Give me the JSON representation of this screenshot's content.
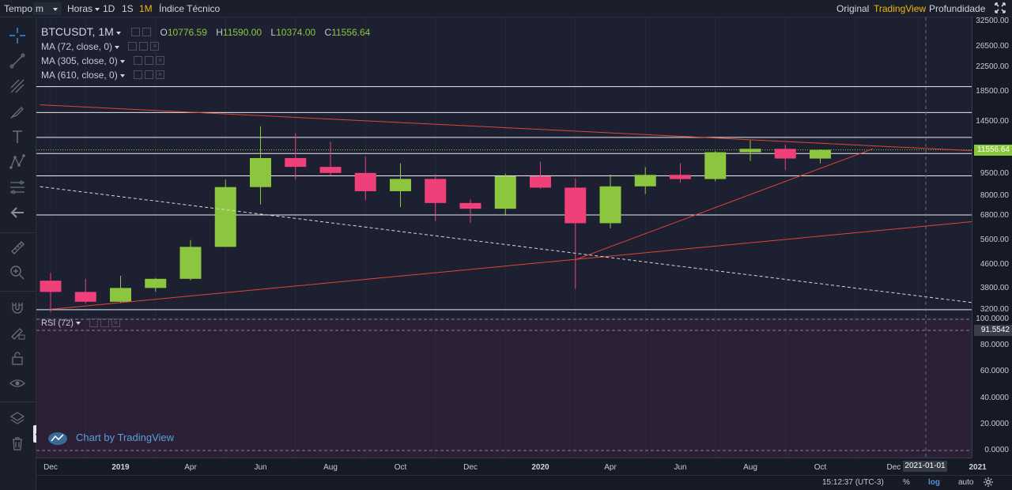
{
  "toolbar": {
    "interval_label": "Tempo",
    "minutes_label": "m",
    "hours_label": "Horas",
    "tf_1d": "1D",
    "tf_1s": "1S",
    "tf_1m": "1M",
    "indicators_label": "Índice Técnico",
    "view_original": "Original",
    "view_tradingview": "TradingView",
    "view_depth": "Profundidade"
  },
  "legend": {
    "symbol": "BTCUSDT, 1M",
    "o_key": "O",
    "o_val": "10776.59",
    "h_key": "H",
    "h_val": "11590.00",
    "l_key": "L",
    "l_val": "10374.00",
    "c_key": "C",
    "c_val": "11556.64",
    "ma1": "MA (72, close, 0)",
    "ma2": "MA (305, close, 0)",
    "ma3": "MA (610, close, 0)"
  },
  "rsi": {
    "label": "RSI (72)",
    "value": "91.5542",
    "ticks": [
      "100.0000",
      "80.0000",
      "60.0000",
      "40.0000",
      "20.0000",
      "0.0000"
    ]
  },
  "price_axis": {
    "labels": [
      "32500.00",
      "26500.00",
      "22500.00",
      "18500.00",
      "14500.00",
      "9500.00",
      "8000.00",
      "6800.00",
      "5600.00",
      "4600.00",
      "3800.00",
      "3200.00"
    ],
    "last_price": "11556.64"
  },
  "time_axis": {
    "labels": [
      "Dec",
      "2019",
      "Apr",
      "Jun",
      "Aug",
      "Oct",
      "Dec",
      "2020",
      "Apr",
      "Jun",
      "Aug",
      "Oct",
      "Dec",
      "2021"
    ],
    "crosshair_date": "2021-01-01"
  },
  "bottom": {
    "clock": "15:12:37 (UTC-3)",
    "percent": "%",
    "log": "log",
    "auto": "auto"
  },
  "watermark": "Chart by TradingView",
  "colors": {
    "up": "#8cc63f",
    "down": "#f0407a",
    "trend": "#e0453a",
    "level": "#e8e8e8",
    "accent": "#f0b90b"
  },
  "chart_data": {
    "type": "candlestick",
    "symbol": "BTCUSDT",
    "timeframe": "1M",
    "scale": "log",
    "ylim": [
      3000,
      33500
    ],
    "categories": [
      "2018-12",
      "2019-01",
      "2019-02",
      "2019-03",
      "2019-04",
      "2019-05",
      "2019-06",
      "2019-07",
      "2019-08",
      "2019-09",
      "2019-10",
      "2019-11",
      "2019-12",
      "2020-01",
      "2020-02",
      "2020-03",
      "2020-04",
      "2020-05",
      "2020-06",
      "2020-07",
      "2020-08",
      "2020-09",
      "2020-10"
    ],
    "candles": [
      {
        "t": "2018-12",
        "o": 4040,
        "h": 4300,
        "l": 3140,
        "c": 3690
      },
      {
        "t": "2019-01",
        "o": 3690,
        "h": 4100,
        "l": 3360,
        "c": 3410
      },
      {
        "t": "2019-02",
        "o": 3410,
        "h": 4200,
        "l": 3370,
        "c": 3810
      },
      {
        "t": "2019-03",
        "o": 3810,
        "h": 4130,
        "l": 3700,
        "c": 4100
      },
      {
        "t": "2019-04",
        "o": 4100,
        "h": 5600,
        "l": 4050,
        "c": 5300
      },
      {
        "t": "2019-05",
        "o": 5300,
        "h": 9100,
        "l": 5300,
        "c": 8570
      },
      {
        "t": "2019-06",
        "o": 8570,
        "h": 13970,
        "l": 7450,
        "c": 10820
      },
      {
        "t": "2019-07",
        "o": 10820,
        "h": 13200,
        "l": 9100,
        "c": 10080
      },
      {
        "t": "2019-08",
        "o": 10080,
        "h": 12330,
        "l": 9400,
        "c": 9600
      },
      {
        "t": "2019-09",
        "o": 9600,
        "h": 10950,
        "l": 7710,
        "c": 8290
      },
      {
        "t": "2019-10",
        "o": 8290,
        "h": 10370,
        "l": 7300,
        "c": 9150
      },
      {
        "t": "2019-11",
        "o": 9150,
        "h": 9500,
        "l": 6520,
        "c": 7540
      },
      {
        "t": "2019-12",
        "o": 7540,
        "h": 7750,
        "l": 6430,
        "c": 7200
      },
      {
        "t": "2020-01",
        "o": 7200,
        "h": 9550,
        "l": 6870,
        "c": 9350
      },
      {
        "t": "2020-02",
        "o": 9350,
        "h": 10500,
        "l": 8450,
        "c": 8530
      },
      {
        "t": "2020-03",
        "o": 8530,
        "h": 9190,
        "l": 3780,
        "c": 6410
      },
      {
        "t": "2020-04",
        "o": 6410,
        "h": 9470,
        "l": 6150,
        "c": 8620
      },
      {
        "t": "2020-05",
        "o": 8620,
        "h": 10060,
        "l": 8110,
        "c": 9450
      },
      {
        "t": "2020-06",
        "o": 9450,
        "h": 10380,
        "l": 8870,
        "c": 9140
      },
      {
        "t": "2020-07",
        "o": 9140,
        "h": 11450,
        "l": 8970,
        "c": 11340
      },
      {
        "t": "2020-08",
        "o": 11340,
        "h": 12470,
        "l": 10570,
        "c": 11650
      },
      {
        "t": "2020-09",
        "o": 11650,
        "h": 12050,
        "l": 9820,
        "c": 10780
      },
      {
        "t": "2020-10",
        "o": 10776.59,
        "h": 11590,
        "l": 10374,
        "c": 11556.64
      }
    ],
    "horizontal_levels": [
      19200,
      15600,
      12770,
      11220,
      9380,
      6850,
      3200
    ],
    "trendlines": [
      {
        "from": {
          "i": -0.3,
          "p": 16600
        },
        "to": {
          "i": 26.4,
          "p": 11470
        },
        "style": "solid"
      },
      {
        "from": {
          "i": 0,
          "p": 3210
        },
        "to": {
          "i": 26.4,
          "p": 6500
        },
        "style": "solid"
      },
      {
        "from": {
          "i": 15,
          "p": 4780
        },
        "to": {
          "i": 23.5,
          "p": 11650
        },
        "style": "solid"
      },
      {
        "from": {
          "i": -0.3,
          "p": 8600
        },
        "to": {
          "i": 26.4,
          "p": 3380
        },
        "style": "dashed"
      }
    ],
    "rsi_levels": [
      100,
      91.5542,
      0
    ]
  }
}
